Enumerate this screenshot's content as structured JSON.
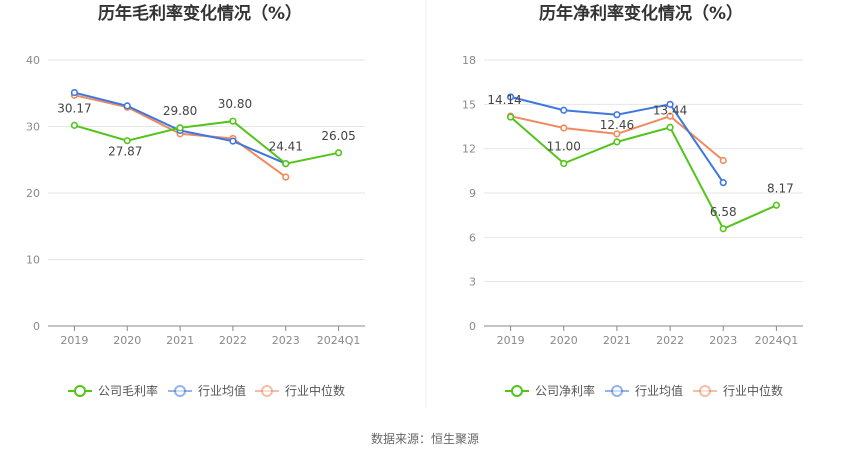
{
  "source_note": "数据来源：恒生聚源",
  "chart_data": [
    {
      "type": "line",
      "title": "历年毛利率变化情况（%）",
      "categories": [
        "2019",
        "2020",
        "2021",
        "2022",
        "2023",
        "2024Q1"
      ],
      "ylim": [
        0,
        40
      ],
      "yticks": [
        0,
        10,
        20,
        30,
        40
      ],
      "grid": true,
      "legend_position": "bottom",
      "series": [
        {
          "name": "公司毛利率",
          "color": "#52c41a",
          "values": [
            30.17,
            27.87,
            29.8,
            30.8,
            24.41,
            26.05
          ],
          "labels": [
            "30.17",
            "27.87",
            "29.80",
            "30.80",
            "24.41",
            "26.05"
          ]
        },
        {
          "name": "行业均值",
          "color": "#3f77e0",
          "values": [
            35.1,
            33.1,
            29.4,
            27.8,
            24.4,
            null
          ]
        },
        {
          "name": "行业中位数",
          "color": "#f08a5d",
          "values": [
            34.7,
            32.9,
            28.9,
            28.2,
            22.4,
            null
          ]
        }
      ]
    },
    {
      "type": "line",
      "title": "历年净利率变化情况（%）",
      "categories": [
        "2019",
        "2020",
        "2021",
        "2022",
        "2023",
        "2024Q1"
      ],
      "ylim": [
        0,
        18
      ],
      "yticks": [
        0,
        3,
        6,
        9,
        12,
        15,
        18
      ],
      "grid": true,
      "legend_position": "bottom",
      "series": [
        {
          "name": "公司净利率",
          "color": "#52c41a",
          "values": [
            14.14,
            11.0,
            12.46,
            13.44,
            6.58,
            8.17
          ],
          "labels": [
            "14.14",
            "11.00",
            "12.46",
            "13.44",
            "6.58",
            "8.17"
          ]
        },
        {
          "name": "行业均值",
          "color": "#3f77e0",
          "values": [
            15.5,
            14.6,
            14.3,
            15.0,
            9.7,
            null
          ]
        },
        {
          "name": "行业中位数",
          "color": "#f08a5d",
          "values": [
            14.2,
            13.4,
            13.0,
            14.2,
            11.2,
            null
          ]
        }
      ]
    }
  ]
}
